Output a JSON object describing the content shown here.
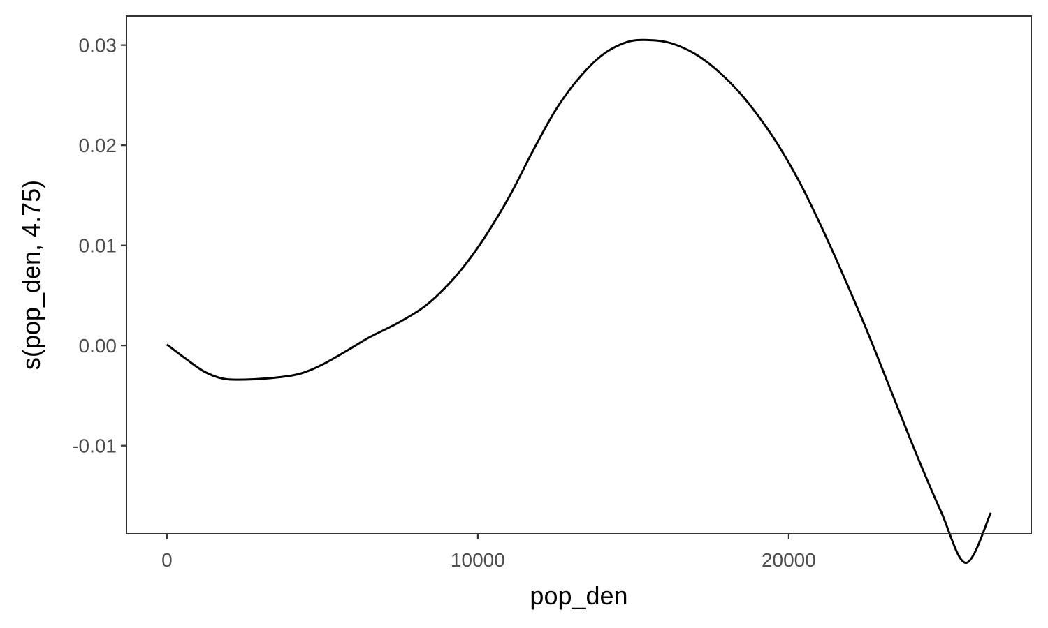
{
  "chart_data": {
    "type": "line",
    "title": "",
    "xlabel": "pop_den",
    "ylabel": "s(pop_den, 4.75)",
    "xlim": [
      -1300,
      27800
    ],
    "ylim": [
      -0.0188,
      0.0329
    ],
    "xticks": [
      0,
      10000,
      20000
    ],
    "xtick_labels": [
      "0",
      "10000",
      "20000"
    ],
    "yticks": [
      -0.01,
      0.0,
      0.01,
      0.02,
      0.03
    ],
    "ytick_labels": [
      "-0.01",
      "0.00",
      "0.01",
      "0.02",
      "0.03"
    ],
    "grid": false,
    "legend": "none",
    "line_color": "#000000",
    "series": [
      {
        "x": [
          0,
          600,
          1200,
          1800,
          2500,
          3500,
          4300,
          5000,
          5800,
          6500,
          7400,
          8200,
          8800,
          9500,
          10200,
          11000,
          11800,
          12500,
          13200,
          14000,
          14800,
          15500,
          16200,
          17000,
          17800,
          18600,
          19500,
          20300,
          21000,
          21700,
          22500,
          23300,
          24100,
          24900,
          25700,
          26500
        ],
        "y": [
          0.0001,
          -0.0013,
          -0.0026,
          -0.0033,
          -0.0034,
          -0.0032,
          -0.0028,
          -0.0019,
          -0.0005,
          0.0008,
          0.0022,
          0.0037,
          0.0053,
          0.0077,
          0.0107,
          0.0148,
          0.0196,
          0.0235,
          0.0265,
          0.029,
          0.0303,
          0.0305,
          0.0302,
          0.0291,
          0.0272,
          0.0246,
          0.0208,
          0.0166,
          0.0122,
          0.0074,
          0.0016,
          -0.0046,
          -0.0108,
          -0.0166,
          -0.0217,
          -0.0167
        ]
      }
    ]
  }
}
